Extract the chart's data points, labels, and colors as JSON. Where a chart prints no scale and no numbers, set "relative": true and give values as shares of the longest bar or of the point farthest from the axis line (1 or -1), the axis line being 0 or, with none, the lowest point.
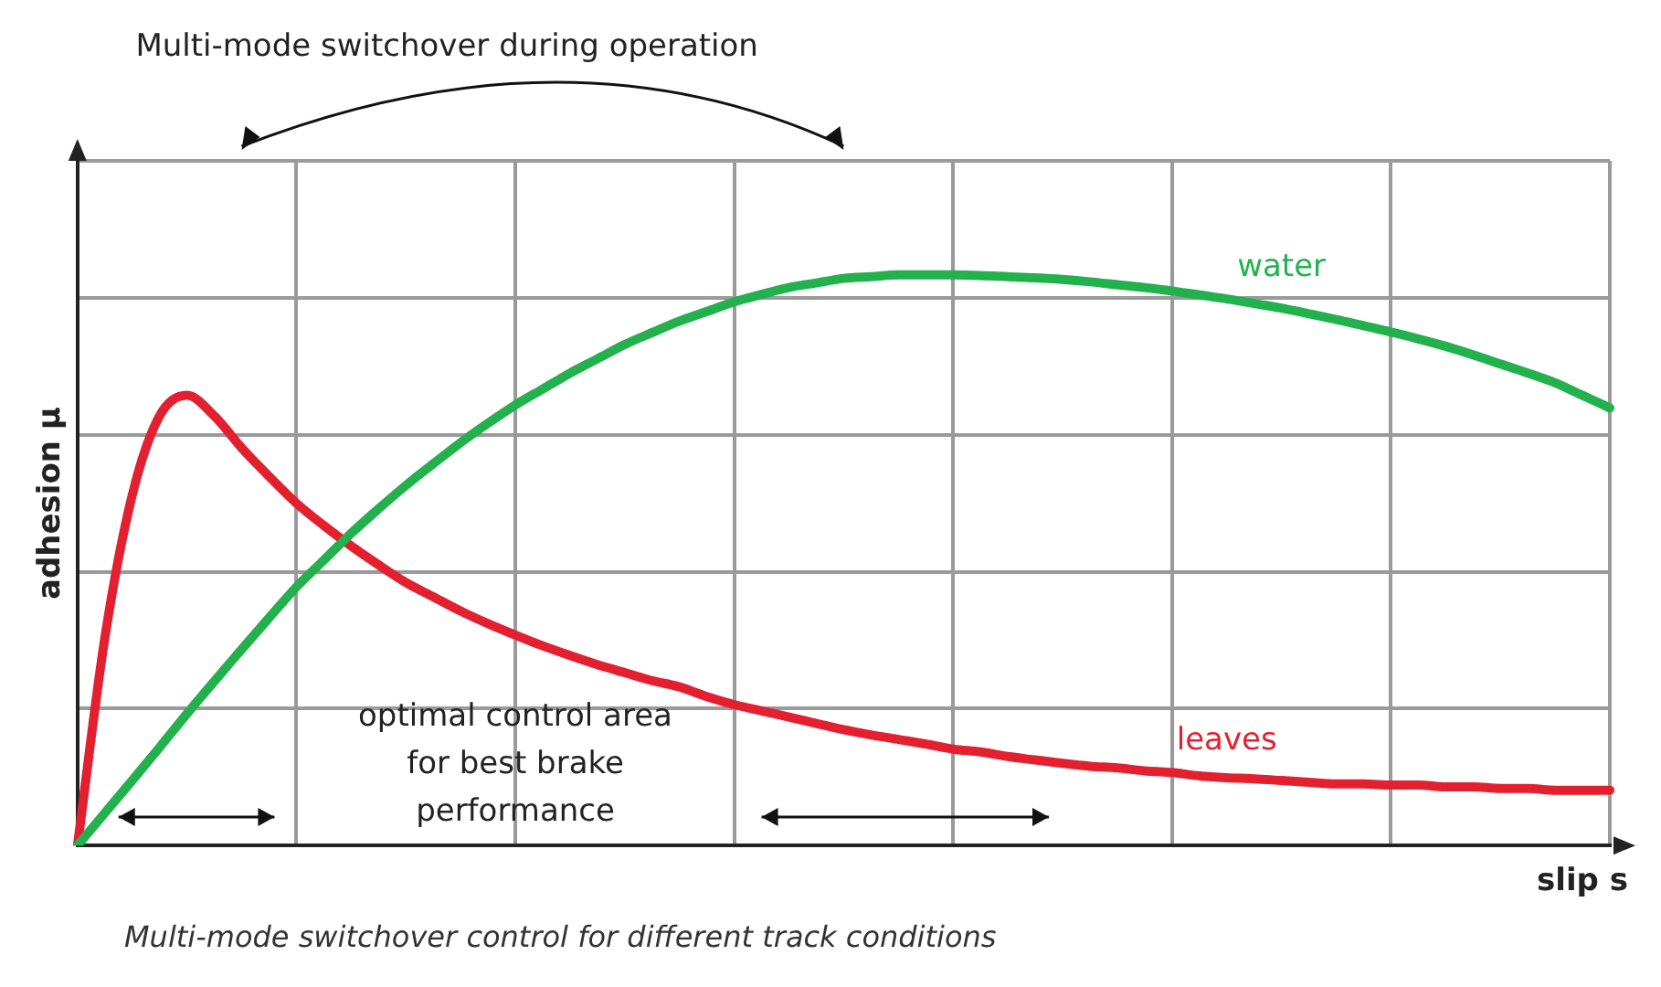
{
  "chart_data": {
    "type": "line",
    "relative": true,
    "xlabel": "slip s",
    "ylabel": "adhesion µ",
    "grid": true,
    "legend": false,
    "marker": "none",
    "line_style": "solid",
    "categories": [
      null,
      null,
      null,
      null,
      null,
      null,
      null,
      null,
      null,
      null,
      null,
      null,
      null,
      null,
      null,
      null,
      null,
      null,
      null,
      null,
      null,
      null,
      null,
      null,
      null,
      null,
      null,
      null,
      null,
      null,
      null,
      null,
      null,
      null,
      null,
      null,
      null,
      null,
      null,
      null,
      null,
      null,
      null,
      null,
      null,
      null,
      null,
      null,
      null,
      null,
      null,
      null,
      null,
      null,
      null,
      null,
      null
    ],
    "series": [
      {
        "name": "water",
        "color": "#22b14c",
        "values": [
          0,
          0.057,
          0.114,
          0.172,
          0.231,
          0.288,
          0.344,
          0.399,
          0.453,
          0.5,
          0.547,
          0.59,
          0.631,
          0.669,
          0.706,
          0.74,
          0.772,
          0.8,
          0.828,
          0.853,
          0.878,
          0.899,
          0.919,
          0.936,
          0.953,
          0.966,
          0.978,
          0.986,
          0.994,
          0.997,
          1,
          1,
          1,
          0.999,
          0.997,
          0.995,
          0.992,
          0.988,
          0.983,
          0.978,
          0.972,
          0.965,
          0.958,
          0.95,
          0.942,
          0.932,
          0.922,
          0.911,
          0.9,
          0.888,
          0.875,
          0.86,
          0.844,
          0.828,
          0.811,
          0.789,
          0.767
        ]
      },
      {
        "name": "leaves",
        "color": "#e3202f",
        "values": [
          0,
          0.364,
          0.614,
          0.753,
          0.789,
          0.753,
          0.697,
          0.647,
          0.6,
          0.561,
          0.525,
          0.492,
          0.461,
          0.436,
          0.411,
          0.389,
          0.369,
          0.35,
          0.333,
          0.317,
          0.303,
          0.289,
          0.278,
          0.261,
          0.247,
          0.236,
          0.225,
          0.214,
          0.203,
          0.194,
          0.186,
          0.178,
          0.169,
          0.164,
          0.156,
          0.15,
          0.144,
          0.139,
          0.136,
          0.131,
          0.128,
          0.122,
          0.119,
          0.117,
          0.114,
          0.111,
          0.108,
          0.108,
          0.106,
          0.106,
          0.103,
          0.103,
          0.1,
          0.1,
          0.097,
          0.097,
          0.097
        ]
      }
    ],
    "annotations": [
      "Multi-mode switchover during operation",
      "optimal control area for best brake performance",
      "Multi-mode switchover control for different track conditions"
    ]
  }
}
